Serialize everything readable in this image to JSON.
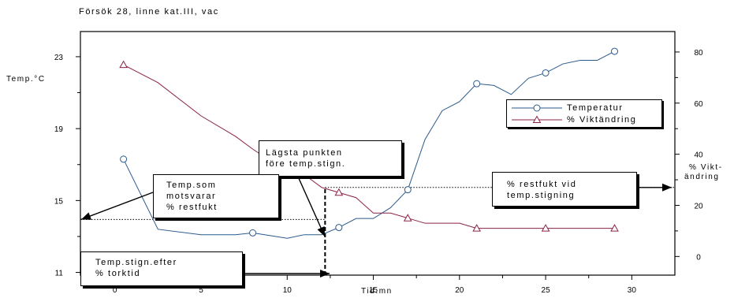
{
  "title": "Försök 28, linne kat.III, vac",
  "chart_data": {
    "type": "line",
    "xlabel": "Tid.mn",
    "ylabel_left": "Temp.°C",
    "ylabel_right": [
      "% Vikt-",
      "ändring"
    ],
    "xlim": [
      -2,
      32.5
    ],
    "ylim_left": [
      10.85,
      24.4
    ],
    "ylim_right": [
      -7.3,
      88
    ],
    "x_ticks": [
      0,
      5,
      10,
      15,
      20,
      25,
      30
    ],
    "y_left_ticks": [
      11,
      15,
      19,
      23
    ],
    "y_right_ticks": [
      0,
      20,
      40,
      60,
      80
    ],
    "legend": {
      "position": "right",
      "entries": [
        "Temperatur",
        "% Viktändring"
      ]
    },
    "series": [
      {
        "name": "Temperatur",
        "axis": "left",
        "color": "#2b5a8c",
        "marker": "circle",
        "x": [
          0.5,
          2.5,
          5,
          7,
          8,
          10,
          11,
          12,
          13,
          14,
          15,
          16,
          17,
          18,
          19,
          20,
          21,
          22,
          23,
          24,
          25,
          26,
          27,
          28,
          29
        ],
        "y": [
          17.3,
          13.4,
          13.1,
          13.1,
          13.2,
          12.9,
          13.1,
          13.1,
          13.5,
          14.0,
          14.0,
          14.6,
          15.6,
          18.4,
          20.0,
          20.5,
          21.5,
          21.4,
          20.9,
          21.8,
          22.1,
          22.6,
          22.8,
          22.8,
          23.3
        ],
        "marked_x": [
          0.5,
          8,
          13,
          17,
          21,
          25,
          29
        ]
      },
      {
        "name": "% Viktändring",
        "axis": "right",
        "color": "#8c2246",
        "marker": "triangle",
        "x": [
          0.5,
          2.5,
          5,
          7,
          8,
          10,
          11,
          12,
          13,
          14,
          15,
          16,
          17,
          18,
          19,
          20,
          21,
          22,
          23,
          24,
          25,
          26,
          27,
          28,
          29
        ],
        "y": [
          75,
          68,
          55,
          47,
          42,
          33,
          32,
          27,
          25,
          23,
          17,
          17,
          15,
          13,
          13,
          13,
          11,
          11,
          11,
          11,
          11,
          11,
          11,
          11,
          11
        ],
        "marked_x": [
          0.5,
          13,
          17,
          21,
          25,
          29
        ]
      }
    ],
    "reference_lines": {
      "dotted_horizontal_left": {
        "y_right": 14.5,
        "x_from": -2,
        "x_to": 12.2
      },
      "dotted_horizontal_right": {
        "y_right": 27,
        "x_from": 12.2,
        "x_to": 32.5
      },
      "dashed_vertical": {
        "x": 12.2,
        "y_right_from": -7.3,
        "y_right_to": 27
      }
    },
    "annotations": [
      {
        "id": "lagsta",
        "lines": [
          "Lägsta punkten",
          "före temp.stign."
        ]
      },
      {
        "id": "temp_som",
        "lines": [
          "Temp.som",
          "motsvarar",
          "% restfukt"
        ]
      },
      {
        "id": "restfukt",
        "lines": [
          "% restfukt vid",
          "temp.stigning"
        ]
      },
      {
        "id": "stign_efter",
        "lines": [
          "Temp.stign.efter",
          "% torktid"
        ]
      }
    ]
  }
}
